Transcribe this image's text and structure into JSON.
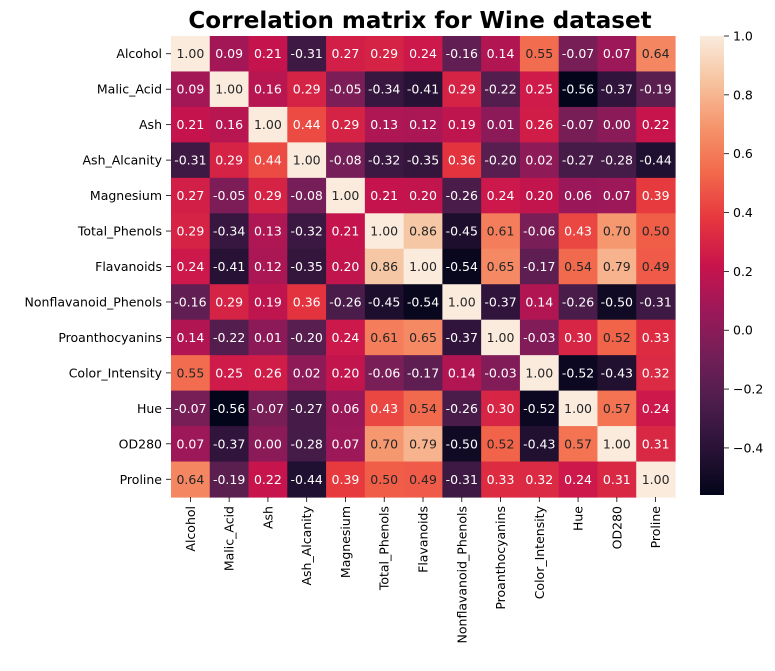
{
  "chart_data": {
    "type": "heatmap",
    "title": "Correlation matrix for Wine dataset",
    "xlabel": "",
    "ylabel": "",
    "labels": [
      "Alcohol",
      "Malic_Acid",
      "Ash",
      "Ash_Alcanity",
      "Magnesium",
      "Total_Phenols",
      "Flavanoids",
      "Nonflavanoid_Phenols",
      "Proanthocyanins",
      "Color_Intensity",
      "Hue",
      "OD280",
      "Proline"
    ],
    "matrix": [
      [
        1.0,
        0.09,
        0.21,
        -0.31,
        0.27,
        0.29,
        0.24,
        -0.16,
        0.14,
        0.55,
        -0.07,
        0.07,
        0.64
      ],
      [
        0.09,
        1.0,
        0.16,
        0.29,
        -0.05,
        -0.34,
        -0.41,
        0.29,
        -0.22,
        0.25,
        -0.56,
        -0.37,
        -0.19
      ],
      [
        0.21,
        0.16,
        1.0,
        0.44,
        0.29,
        0.13,
        0.12,
        0.19,
        0.01,
        0.26,
        -0.07,
        0.0,
        0.22
      ],
      [
        -0.31,
        0.29,
        0.44,
        1.0,
        -0.08,
        -0.32,
        -0.35,
        0.36,
        -0.2,
        0.02,
        -0.27,
        -0.28,
        -0.44
      ],
      [
        0.27,
        -0.05,
        0.29,
        -0.08,
        1.0,
        0.21,
        0.2,
        -0.26,
        0.24,
        0.2,
        0.06,
        0.07,
        0.39
      ],
      [
        0.29,
        -0.34,
        0.13,
        -0.32,
        0.21,
        1.0,
        0.86,
        -0.45,
        0.61,
        -0.06,
        0.43,
        0.7,
        0.5
      ],
      [
        0.24,
        -0.41,
        0.12,
        -0.35,
        0.2,
        0.86,
        1.0,
        -0.54,
        0.65,
        -0.17,
        0.54,
        0.79,
        0.49
      ],
      [
        -0.16,
        0.29,
        0.19,
        0.36,
        -0.26,
        -0.45,
        -0.54,
        1.0,
        -0.37,
        0.14,
        -0.26,
        -0.5,
        -0.31
      ],
      [
        0.14,
        -0.22,
        0.01,
        -0.2,
        0.24,
        0.61,
        0.65,
        -0.37,
        1.0,
        -0.03,
        0.3,
        0.52,
        0.33
      ],
      [
        0.55,
        0.25,
        0.26,
        0.02,
        0.2,
        -0.06,
        -0.17,
        0.14,
        -0.03,
        1.0,
        -0.52,
        -0.43,
        0.32
      ],
      [
        -0.07,
        -0.56,
        -0.07,
        -0.27,
        0.06,
        0.43,
        0.54,
        -0.26,
        0.3,
        -0.52,
        1.0,
        0.57,
        0.24
      ],
      [
        0.07,
        -0.37,
        0.0,
        -0.28,
        0.07,
        0.7,
        0.79,
        -0.5,
        0.52,
        -0.43,
        0.57,
        1.0,
        0.31
      ],
      [
        0.64,
        -0.19,
        0.22,
        -0.44,
        0.39,
        0.5,
        0.49,
        -0.31,
        0.33,
        0.32,
        0.24,
        0.31,
        1.0
      ]
    ],
    "value_format": "2 decimals",
    "colormap": "rocket",
    "vmin": -0.56,
    "vmax": 1.0,
    "colorbar_ticks": [
      "1.0",
      "0.8",
      "0.6",
      "0.4",
      "0.2",
      "0.0",
      "−0.2",
      "−0.4"
    ],
    "colorbar_tick_values": [
      1.0,
      0.8,
      0.6,
      0.4,
      0.2,
      0.0,
      -0.2,
      -0.4
    ],
    "colorbar_placement": "right",
    "grid": false
  }
}
